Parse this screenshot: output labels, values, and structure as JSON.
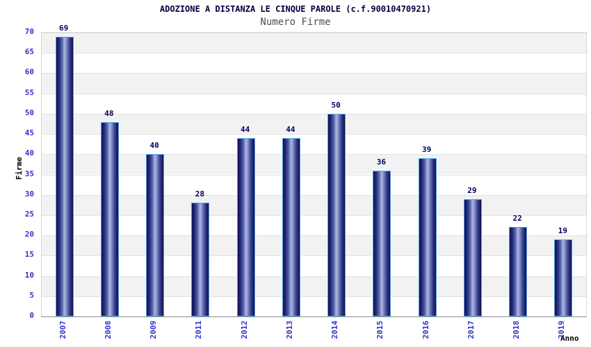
{
  "chart_data": {
    "type": "bar",
    "title": "ADOZIONE A DISTANZA LE CINQUE PAROLE (c.f.90010470921)",
    "subtitle": "Numero Firme",
    "xlabel": "Anno",
    "ylabel": "Firme",
    "categories": [
      "2007",
      "2008",
      "2009",
      "2011",
      "2012",
      "2013",
      "2014",
      "2015",
      "2016",
      "2017",
      "2018",
      "2019"
    ],
    "values": [
      69,
      48,
      40,
      28,
      44,
      44,
      50,
      36,
      39,
      29,
      22,
      19
    ],
    "ylim": [
      0,
      70
    ],
    "ytick_step": 5,
    "yticks": [
      0,
      5,
      10,
      15,
      20,
      25,
      30,
      35,
      40,
      45,
      50,
      55,
      60,
      65,
      70
    ],
    "grid": true,
    "legend": "none",
    "band_colors": [
      "#ffffff",
      "#f2f2f2"
    ],
    "colors": {
      "title": "#000040",
      "subtitle": "#4d4d4d",
      "tick_label": "#3333cc",
      "value_label": "#000066",
      "axis_label": "#000000",
      "bar_border": "#58a2e0",
      "bar_dark": "#0f0f52",
      "bar_light": "#aab4e0",
      "gridline": "#e2e2e2",
      "axis_line": "#8c8c8c",
      "background": "#ffffff"
    }
  }
}
